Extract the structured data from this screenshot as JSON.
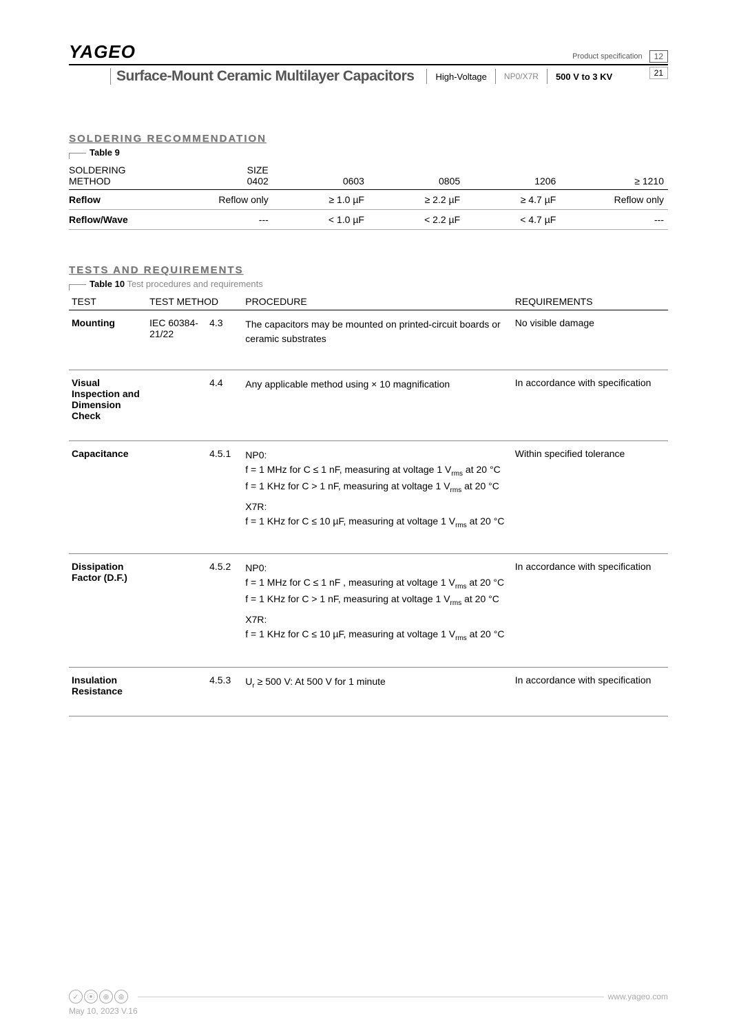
{
  "header": {
    "logo": "YAGEO",
    "spec_label": "Product specification",
    "page_current": "12",
    "page_total": "21",
    "subtitle": "Surface-Mount Ceramic Multilayer Capacitors",
    "hv": "High-Voltage",
    "np0": "NP0/X7R",
    "voltage": "500 V to 3 KV"
  },
  "soldering": {
    "section_title": "SOLDERING RECOMMENDATION",
    "table_label": "Table 9",
    "headers": {
      "method_l1": "SOLDERING",
      "method_l2": "METHOD",
      "size_l1": "SIZE",
      "size_l2": "0402",
      "c0603": "0603",
      "c0805": "0805",
      "c1206": "1206",
      "c1210": "≥ 1210"
    },
    "rows": [
      {
        "method": "Reflow",
        "v0402": "Reflow only",
        "v0603": "≥ 1.0 µF",
        "v0805": "≥ 2.2 µF",
        "v1206": "≥ 4.7 µF",
        "v1210": "Reflow only"
      },
      {
        "method": "Reflow/Wave",
        "v0402": "---",
        "v0603": "< 1.0 µF",
        "v0805": "< 2.2 µF",
        "v1206": "< 4.7 µF",
        "v1210": "---"
      }
    ]
  },
  "tests": {
    "section_title": "TESTS AND REQUIREMENTS",
    "table_label_bold": "Table 10",
    "table_label_caption": "Test procedures and requirements",
    "headers": {
      "test": "TEST",
      "method": "TEST METHOD",
      "procedure": "PROCEDURE",
      "requirements": "REQUIREMENTS"
    },
    "rows": [
      {
        "test": "Mounting",
        "method_std": "IEC 60384-21/22",
        "method_clause": "4.3",
        "procedure": "The capacitors may be mounted on printed-circuit boards or ceramic substrates",
        "requirements": "No visible damage"
      },
      {
        "test": "Visual Inspection and Dimension Check",
        "method_std": "",
        "method_clause": "4.4",
        "procedure": "Any applicable method using × 10 magnification",
        "requirements": "In accordance with specification"
      },
      {
        "test": "Capacitance",
        "method_std": "",
        "method_clause": "4.5.1",
        "procedure_html": "NP0:<br>f = 1 MHz for C ≤ 1 nF, measuring at voltage 1 V<sub>rms</sub> at 20 °C<br>f = 1 KHz for C > 1 nF, measuring at voltage 1 V<sub>rms</sub> at 20 °C<br><span style='display:block;margin-top:6px'>X7R:</span>f = 1 KHz for C ≤ 10 µF, measuring at voltage 1 V<sub>rms</sub> at 20 °C",
        "requirements": "Within specified tolerance"
      },
      {
        "test": "Dissipation Factor (D.F.)",
        "method_std": "",
        "method_clause": "4.5.2",
        "procedure_html": "NP0:<br>f = 1 MHz for C ≤ 1 nF , measuring at voltage 1 V<sub>rms</sub> at 20 °C<br>f = 1 KHz for C > 1 nF, measuring at voltage 1 V<sub>rms</sub> at 20 °C<br><span style='display:block;margin-top:6px'>X7R:</span>f = 1 KHz for C ≤ 10 µF, measuring at voltage 1 V<sub>rms</sub> at 20 °C",
        "requirements": "In accordance with specification"
      },
      {
        "test": "Insulation Resistance",
        "method_std": "",
        "method_clause": "4.5.3",
        "procedure_html": "U<sub>r</sub> ≥ 500 V: At 500 V for 1 minute",
        "requirements": "In accordance with specification"
      }
    ]
  },
  "footer": {
    "date": "May 10, 2023  V.16",
    "url": "www.yageo.com"
  }
}
